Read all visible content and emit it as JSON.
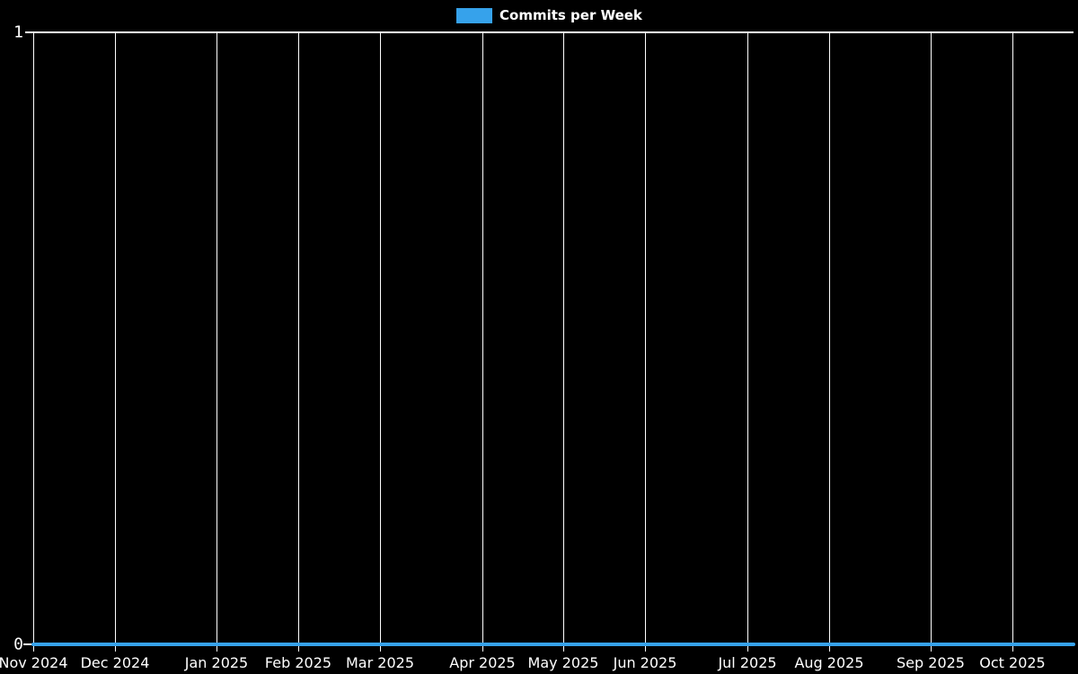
{
  "page": {
    "background": "#000000"
  },
  "legend": {
    "label": "Commits per Week",
    "swatch_color": "#36a2eb",
    "text_color": "#ffffff"
  },
  "chart_data": {
    "type": "line",
    "title": "",
    "legend_entries": [
      "Commits per Week"
    ],
    "legend_position": "top-center",
    "background_color": "#000000",
    "grid_color": "#ffffff",
    "axis_text_color": "#ffffff",
    "series": [
      {
        "name": "Commits per Week",
        "color": "#36a2eb",
        "line_width": 4,
        "values": [
          0,
          0,
          0,
          0,
          0,
          0,
          0,
          0,
          0,
          0,
          0,
          0,
          0,
          0,
          0,
          0,
          0,
          0,
          0,
          0,
          0,
          0,
          0,
          0,
          0,
          0,
          0,
          0,
          0,
          0,
          0,
          0,
          0,
          0,
          0,
          0,
          0,
          0,
          0,
          0,
          0,
          0,
          0,
          0,
          0,
          0,
          0,
          0,
          0,
          0,
          0,
          0
        ]
      }
    ],
    "x_axis": {
      "unit": "weeks",
      "total_points": 52,
      "gridlines": true,
      "tick_labels": [
        "Nov 2024",
        "Dec 2024",
        "Jan 2025",
        "Feb 2025",
        "Mar 2025",
        "Apr 2025",
        "May 2025",
        "Jun 2025",
        "Jul 2025",
        "Aug 2025",
        "Sep 2025",
        "Oct 2025"
      ],
      "tick_point_index": [
        0,
        4,
        9,
        13,
        17,
        22,
        26,
        30,
        35,
        39,
        44,
        48
      ]
    },
    "y_axis": {
      "ylim": [
        0,
        1
      ],
      "gridlines": false,
      "ticks": [
        {
          "value": 1,
          "label": "1"
        },
        {
          "value": 0,
          "label": "0"
        }
      ]
    }
  }
}
